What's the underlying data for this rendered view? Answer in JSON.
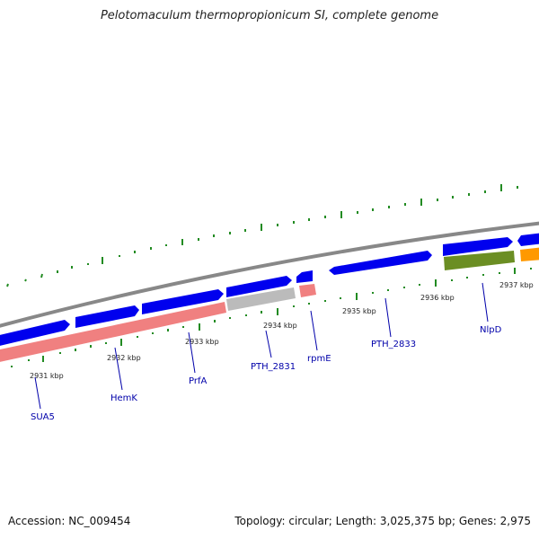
{
  "map": {
    "title": "Pelotomaculum thermopropionicum SI, complete genome",
    "accession": "Accession: NC_009454",
    "topology": "Topology: circular; Length: 3,025,375 bp; Genes: 2,975",
    "colors": {
      "backbone": "#888888",
      "cds_forward": "#0000ee",
      "cog_red": "#f08080",
      "cog_grey": "#bbbbbb",
      "cog_olive": "#6b8e23",
      "cog_orange": "#ff9900",
      "tick": "#228b22",
      "label_link": "#0000aa"
    },
    "kbp_ticks": [
      "2931 kbp",
      "2932 kbp",
      "2933 kbp",
      "2934 kbp",
      "2935 kbp",
      "2936 kbp",
      "2937 kbp"
    ],
    "gene_labels": [
      "SUA5",
      "HemK",
      "PrfA",
      "PTH_2831",
      "rpmE",
      "PTH_2833",
      "NlpD"
    ]
  }
}
